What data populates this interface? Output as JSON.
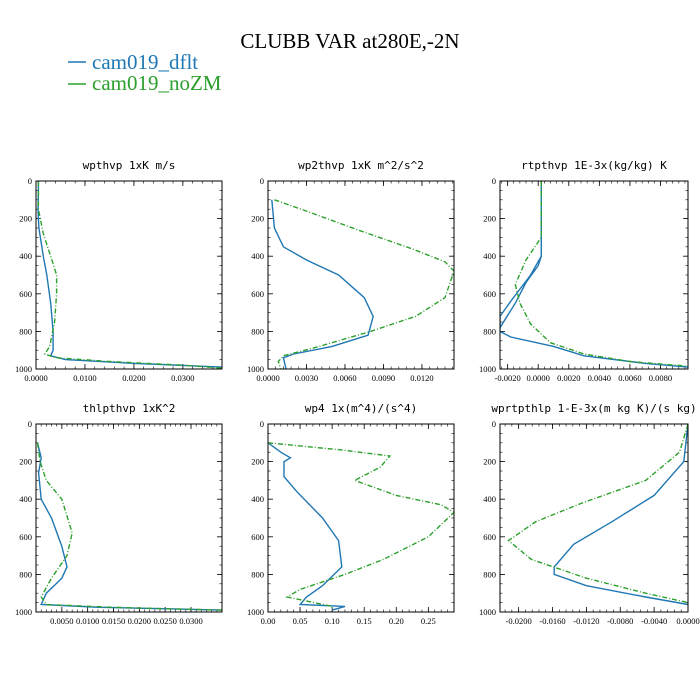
{
  "title": "CLUBB VAR at280E,-2N",
  "legend": [
    {
      "name": "cam019_dflt",
      "color": "#1f77b4"
    },
    {
      "name": "cam019_noZM",
      "color": "#2ca02c"
    }
  ],
  "chart_data": [
    {
      "type": "line",
      "title": "wpthvp  1xK m/s",
      "xlim": [
        0,
        0.038
      ],
      "ylim": [
        1000,
        0
      ],
      "yticks": [
        0,
        200,
        400,
        600,
        800,
        1000
      ],
      "xticks": [
        0,
        0.01,
        0.02,
        0.03
      ],
      "xticklabels": [
        "0.0000",
        "0.0100",
        "0.0200",
        "0.0300"
      ],
      "series": [
        {
          "name": "cam019_dflt",
          "points": [
            [
              0.0005,
              0
            ],
            [
              0.0005,
              50
            ],
            [
              0.0004,
              150
            ],
            [
              0.0006,
              250
            ],
            [
              0.0015,
              400
            ],
            [
              0.0022,
              500
            ],
            [
              0.003,
              650
            ],
            [
              0.0035,
              800
            ],
            [
              0.0035,
              900
            ],
            [
              0.003,
              930
            ],
            [
              0.006,
              950
            ],
            [
              0.02,
              970
            ],
            [
              0.038,
              990
            ]
          ]
        },
        {
          "name": "cam019_noZM",
          "points": [
            [
              0.0005,
              0
            ],
            [
              0.0005,
              50
            ],
            [
              0.0005,
              150
            ],
            [
              0.0015,
              280
            ],
            [
              0.003,
              400
            ],
            [
              0.0042,
              500
            ],
            [
              0.0042,
              600
            ],
            [
              0.0038,
              750
            ],
            [
              0.0028,
              880
            ],
            [
              0.0018,
              920
            ],
            [
              0.004,
              940
            ],
            [
              0.015,
              960
            ],
            [
              0.03,
              980
            ],
            [
              0.038,
              995
            ]
          ]
        }
      ]
    },
    {
      "type": "line",
      "title": "wp2thvp  1xK m^2/s^2",
      "xlim": [
        0,
        0.0145
      ],
      "ylim": [
        1000,
        0
      ],
      "yticks": [
        0,
        200,
        400,
        600,
        800,
        1000
      ],
      "xticks": [
        0,
        0.003,
        0.006,
        0.009,
        0.012
      ],
      "xticklabels": [
        "0.0000",
        "0.0030",
        "0.0060",
        "0.0090",
        "0.0120"
      ],
      "series": [
        {
          "name": "cam019_dflt",
          "points": [
            [
              0.0003,
              100
            ],
            [
              0.0005,
              250
            ],
            [
              0.0012,
              350
            ],
            [
              0.003,
              420
            ],
            [
              0.0055,
              500
            ],
            [
              0.0075,
              620
            ],
            [
              0.0082,
              720
            ],
            [
              0.0078,
              820
            ],
            [
              0.005,
              880
            ],
            [
              0.002,
              920
            ],
            [
              0.0012,
              940
            ],
            [
              0.0014,
              1000
            ]
          ]
        },
        {
          "name": "cam019_noZM",
          "points": [
            [
              0.0005,
              100
            ],
            [
              0.003,
              160
            ],
            [
              0.007,
              260
            ],
            [
              0.0112,
              360
            ],
            [
              0.0138,
              430
            ],
            [
              0.0145,
              480
            ],
            [
              0.0138,
              620
            ],
            [
              0.0115,
              720
            ],
            [
              0.008,
              800
            ],
            [
              0.004,
              880
            ],
            [
              0.0012,
              930
            ],
            [
              0.0008,
              960
            ],
            [
              0.001,
              1000
            ]
          ]
        }
      ]
    },
    {
      "type": "line",
      "title": "rtpthvp  1E-3x(kg/kg) K",
      "xlim": [
        -0.0025,
        0.0098
      ],
      "ylim": [
        1000,
        0
      ],
      "yticks": [
        0,
        200,
        400,
        600,
        800,
        1000
      ],
      "xticks": [
        -0.002,
        0,
        0.002,
        0.004,
        0.006,
        0.008
      ],
      "xticklabels": [
        "-0.0020",
        "0.0000",
        "0.0020",
        "0.0040",
        "0.0060",
        "0.0080"
      ],
      "series": [
        {
          "name": "cam019_dflt",
          "points": [
            [
              -0.0025,
              780
            ],
            [
              -0.0015,
              650
            ],
            [
              -0.0008,
              540
            ],
            [
              0,
              450
            ],
            [
              0.0002,
              400
            ],
            [
              0.0002,
              0
            ],
            [
              0.0002,
              400
            ],
            [
              -0.0005,
              500
            ],
            [
              -0.0018,
              640
            ],
            [
              -0.0025,
              720
            ],
            [
              -0.0025,
              800
            ],
            [
              -0.0018,
              830
            ],
            [
              0.001,
              880
            ],
            [
              0.003,
              930
            ],
            [
              0.007,
              970
            ],
            [
              0.0098,
              990
            ]
          ]
        },
        {
          "name": "cam019_noZM",
          "points": [
            [
              0.0002,
              0
            ],
            [
              0.0002,
              300
            ],
            [
              -0.0008,
              420
            ],
            [
              -0.0015,
              550
            ],
            [
              -0.0012,
              650
            ],
            [
              -0.0005,
              760
            ],
            [
              0.0008,
              860
            ],
            [
              0.003,
              920
            ],
            [
              0.006,
              960
            ],
            [
              0.0098,
              985
            ]
          ]
        }
      ]
    },
    {
      "type": "line",
      "title": "thlpthvp  1xK^2",
      "xlim": [
        0,
        0.036
      ],
      "ylim": [
        1000,
        0
      ],
      "yticks": [
        0,
        200,
        400,
        600,
        800,
        1000
      ],
      "xticks": [
        0.005,
        0.01,
        0.015,
        0.02,
        0.025,
        0.03
      ],
      "xticklabels": [
        "0.0050",
        "0.0100",
        "0.0150",
        "0.0200",
        "0.0250",
        "0.0300"
      ],
      "series": [
        {
          "name": "cam019_dflt",
          "points": [
            [
              0.0003,
              100
            ],
            [
              0.001,
              180
            ],
            [
              0.0005,
              260
            ],
            [
              0.001,
              400
            ],
            [
              0.003,
              500
            ],
            [
              0.005,
              650
            ],
            [
              0.006,
              760
            ],
            [
              0.005,
              820
            ],
            [
              0.002,
              900
            ],
            [
              0.001,
              960
            ],
            [
              0.012,
              975
            ],
            [
              0.036,
              990
            ]
          ]
        },
        {
          "name": "cam019_noZM",
          "points": [
            [
              0.0003,
              100
            ],
            [
              0.0008,
              200
            ],
            [
              0.002,
              300
            ],
            [
              0.005,
              400
            ],
            [
              0.007,
              580
            ],
            [
              0.006,
              700
            ],
            [
              0.003,
              820
            ],
            [
              0.001,
              920
            ],
            [
              0.002,
              960
            ],
            [
              0.015,
              975
            ],
            [
              0.036,
              990
            ]
          ]
        }
      ]
    },
    {
      "type": "line",
      "title": "wp4  1x(m^4)/(s^4)",
      "xlim": [
        0,
        0.29
      ],
      "ylim": [
        1000,
        0
      ],
      "yticks": [
        0,
        200,
        400,
        600,
        800,
        1000
      ],
      "xticks": [
        0,
        0.05,
        0.1,
        0.15,
        0.2,
        0.25
      ],
      "xticklabels": [
        "0.00",
        "0.05",
        "0.10",
        "0.15",
        "0.20",
        "0.25"
      ],
      "series": [
        {
          "name": "cam019_dflt",
          "points": [
            [
              0,
              100
            ],
            [
              0.02,
              150
            ],
            [
              0.035,
              180
            ],
            [
              0.025,
              200
            ],
            [
              0.025,
              280
            ],
            [
              0.045,
              360
            ],
            [
              0.085,
              500
            ],
            [
              0.11,
              620
            ],
            [
              0.115,
              760
            ],
            [
              0.085,
              860
            ],
            [
              0.06,
              920
            ],
            [
              0.05,
              960
            ],
            [
              0.12,
              970
            ],
            [
              0.1,
              990
            ]
          ]
        },
        {
          "name": "cam019_noZM",
          "points": [
            [
              0,
              100
            ],
            [
              0.12,
              140
            ],
            [
              0.19,
              170
            ],
            [
              0.175,
              230
            ],
            [
              0.135,
              300
            ],
            [
              0.2,
              380
            ],
            [
              0.27,
              430
            ],
            [
              0.29,
              470
            ],
            [
              0.25,
              600
            ],
            [
              0.18,
              720
            ],
            [
              0.12,
              800
            ],
            [
              0.05,
              880
            ],
            [
              0.03,
              920
            ],
            [
              0.1,
              970
            ],
            [
              0.1,
              990
            ]
          ]
        }
      ]
    },
    {
      "type": "line",
      "title": "wprtpthlp  1-E-3x(m kg K)/(s kg)",
      "xlim": [
        -0.0222,
        0
      ],
      "ylim": [
        1000,
        0
      ],
      "yticks": [
        0,
        200,
        400,
        600,
        800,
        1000
      ],
      "xticks": [
        -0.02,
        -0.016,
        -0.012,
        -0.008,
        -0.004,
        0
      ],
      "xticklabels": [
        "-0.0200",
        "-0.0160",
        "-0.0120",
        "-0.0080",
        "-0.0040",
        "0.0000"
      ],
      "series": [
        {
          "name": "cam019_dflt",
          "points": [
            [
              0,
              0
            ],
            [
              -0.0005,
              200
            ],
            [
              -0.004,
              380
            ],
            [
              -0.009,
              520
            ],
            [
              -0.0135,
              640
            ],
            [
              -0.0158,
              760
            ],
            [
              -0.0158,
              800
            ],
            [
              -0.012,
              860
            ],
            [
              -0.005,
              920
            ],
            [
              0,
              960
            ]
          ]
        },
        {
          "name": "cam019_noZM",
          "points": [
            [
              0,
              0
            ],
            [
              -0.001,
              150
            ],
            [
              -0.005,
              300
            ],
            [
              -0.0125,
              420
            ],
            [
              -0.018,
              520
            ],
            [
              -0.0212,
              620
            ],
            [
              -0.0185,
              720
            ],
            [
              -0.012,
              820
            ],
            [
              -0.005,
              900
            ],
            [
              0,
              950
            ]
          ]
        }
      ]
    }
  ]
}
